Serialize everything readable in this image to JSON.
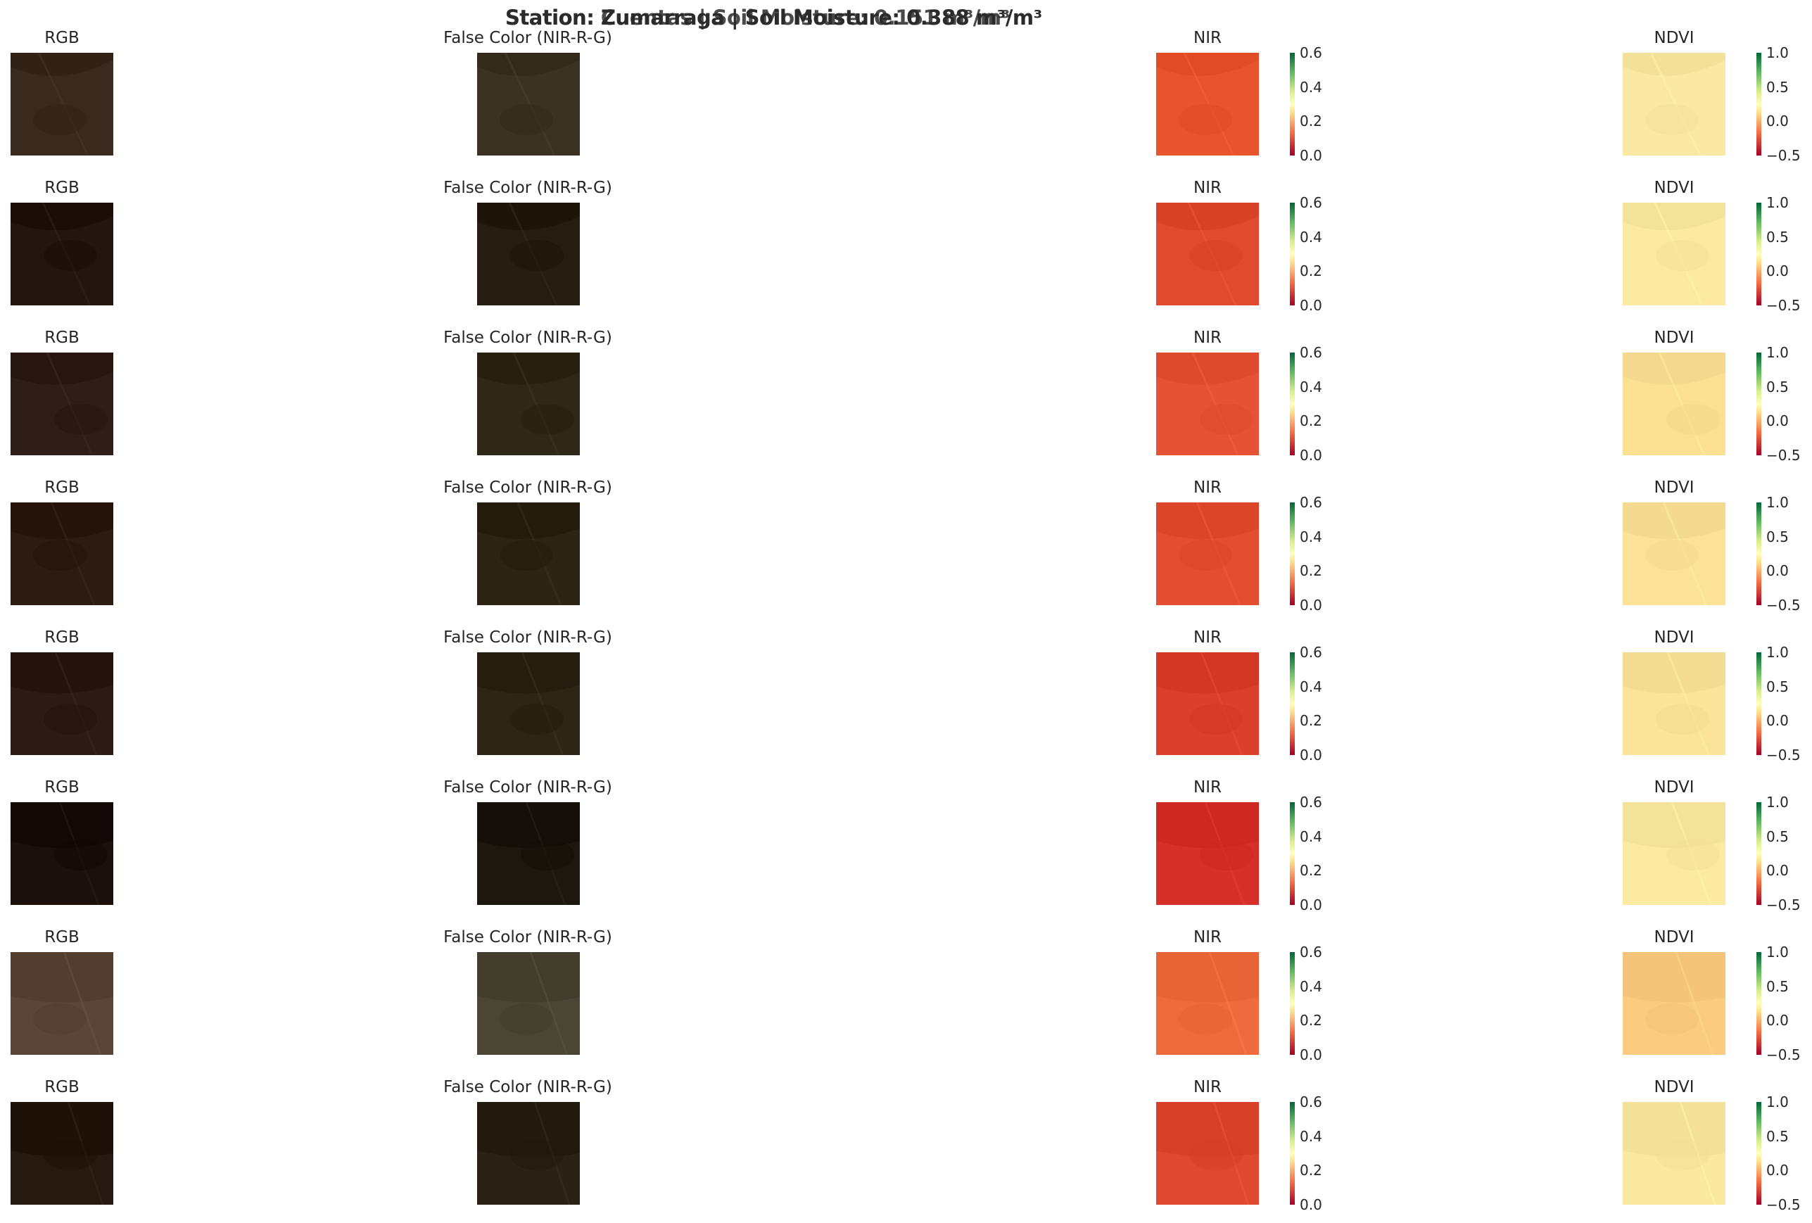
{
  "figure": {
    "suptitle_overlap": [
      "Station: Zumarraga | Soil Moisture: 0.388 m³/m³",
      "Station: Cuentas | Soil Moisture: 0.151 m³/m³"
    ]
  },
  "chart_data": {
    "type": "heatmap",
    "layout": "8 rows x 4 columns image panels",
    "columns": [
      "RGB",
      "False Color (NIR-R-G)",
      "NIR",
      "NDVI"
    ],
    "colorbars": {
      "NIR": {
        "cmap": "RdYlGn",
        "range": [
          0.0,
          0.6
        ],
        "ticks": [
          "0.6",
          "0.4",
          "0.2",
          "0.0"
        ]
      },
      "NDVI": {
        "cmap": "RdYlGn",
        "range": [
          -0.5,
          1.0
        ],
        "ticks": [
          "1.0",
          "0.5",
          "0.0",
          "−0.5"
        ]
      }
    },
    "rows": [
      {
        "rgb": "#3a2a1e",
        "false": "#3b3222",
        "nir": "#e8542e",
        "ndvi": "#fbe8a2"
      },
      {
        "rgb": "#24160f",
        "false": "#261d12",
        "nir": "#e14a2f",
        "ndvi": "#fbea9f"
      },
      {
        "rgb": "#2f1d17",
        "false": "#2f2818",
        "nir": "#e55235",
        "ndvi": "#fbe094"
      },
      {
        "rgb": "#2d1b12",
        "false": "#2c2414",
        "nir": "#e44e30",
        "ndvi": "#fbe297"
      },
      {
        "rgb": "#2e1a14",
        "false": "#2d2617",
        "nir": "#dc3f2c",
        "ndvi": "#fbe39a"
      },
      {
        "rgb": "#1b100c",
        "false": "#1c1810",
        "nir": "#d6302a",
        "ndvi": "#fbea9f"
      },
      {
        "rgb": "#5a4538",
        "false": "#4a4535",
        "nir": "#ef6b3e",
        "ndvi": "#fbcc80"
      },
      {
        "rgb": "#261a10",
        "false": "#2a2214",
        "nir": "#e0492f",
        "ndvi": "#fbe9a0"
      }
    ]
  }
}
